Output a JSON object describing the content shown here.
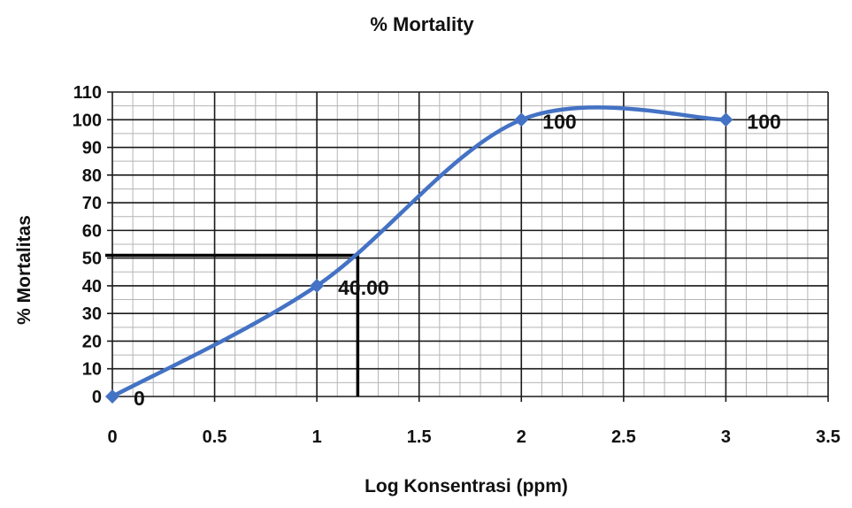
{
  "chart_data": {
    "type": "line",
    "title": "% Mortality",
    "xlabel": "Log Konsentrasi (ppm)",
    "ylabel": "% Mortalitas",
    "xlim": [
      0,
      3.5
    ],
    "ylim": [
      0,
      110
    ],
    "x_ticks": [
      "0",
      "0.5",
      "1",
      "1.5",
      "2",
      "2.5",
      "3",
      "3.5"
    ],
    "y_ticks": [
      "0",
      "10",
      "20",
      "30",
      "40",
      "50",
      "60",
      "70",
      "80",
      "90",
      "100",
      "110"
    ],
    "x_minor_step": 0.1,
    "y_minor_step": 5,
    "grid": true,
    "smooth": true,
    "series": [
      {
        "color": "#4472C4",
        "marker": "diamond",
        "x": [
          0,
          1,
          2,
          3
        ],
        "y": [
          0,
          40,
          100,
          100
        ],
        "labels": [
          "0",
          "40.00",
          "100",
          "100"
        ]
      }
    ],
    "reference_line": {
      "x": 1.2,
      "y": 51,
      "color": "#000000"
    }
  }
}
